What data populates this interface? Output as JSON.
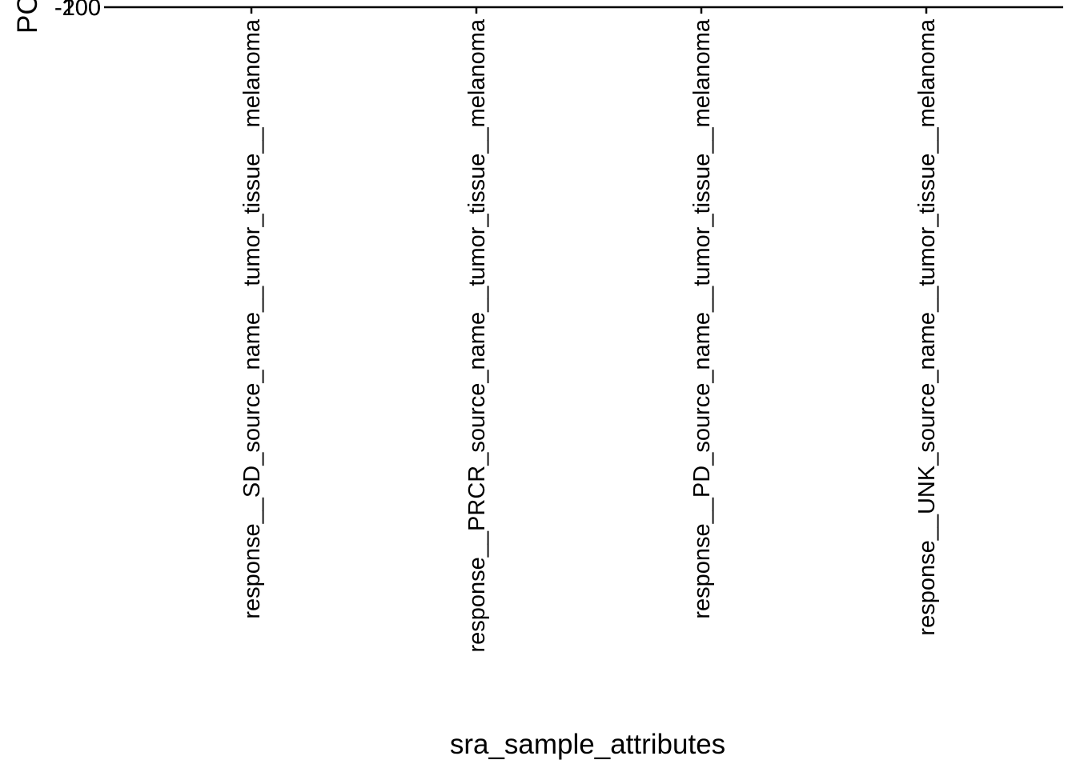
{
  "chart_data": {
    "type": "scatter",
    "xlabel": "sra_sample_attributes",
    "ylabel": "PC",
    "categories": [
      "response__SD_source_name__tumor_tissue__melanoma",
      "response__PRCR_source_name__tumor_tissue__melanoma",
      "response__PD_source_name__tumor_tissue__melanoma",
      "response__UNK_source_name__tumor_tissue__melanoma"
    ],
    "y_ticks": [
      "-200",
      "-100"
    ],
    "grid": false
  }
}
